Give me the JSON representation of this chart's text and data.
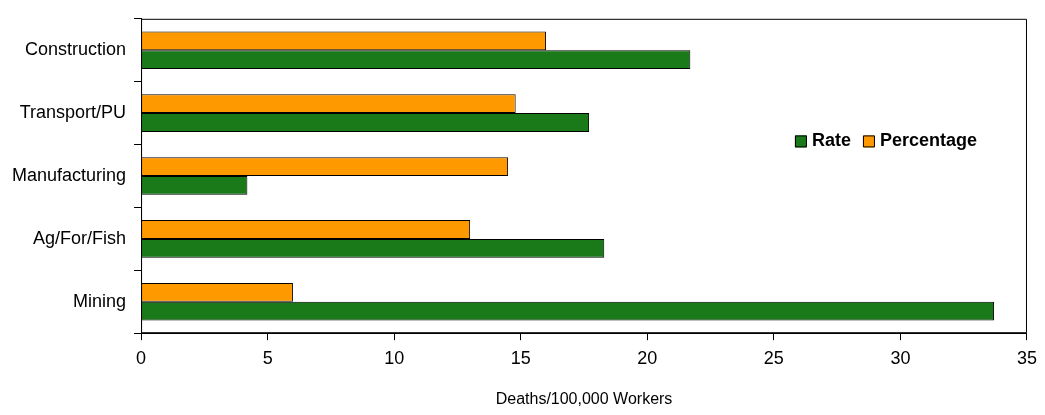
{
  "chart_data": {
    "type": "bar",
    "orientation": "horizontal",
    "xlabel": "Deaths/100,000 Workers",
    "categories": [
      "Construction",
      "Transport/PU",
      "Manufacturing",
      "Ag/For/Fish",
      "Mining"
    ],
    "series": [
      {
        "name": "Percentage",
        "color": "#ff9900",
        "values": [
          16.0,
          14.8,
          14.5,
          13.0,
          6.0
        ]
      },
      {
        "name": "Rate",
        "color": "#1a7a1a",
        "values": [
          21.7,
          17.7,
          4.2,
          18.3,
          33.7
        ]
      }
    ],
    "xlim": [
      0,
      35
    ],
    "xticks": [
      0,
      5,
      10,
      15,
      20,
      25,
      30,
      35
    ],
    "grid": false,
    "legend": "right"
  }
}
